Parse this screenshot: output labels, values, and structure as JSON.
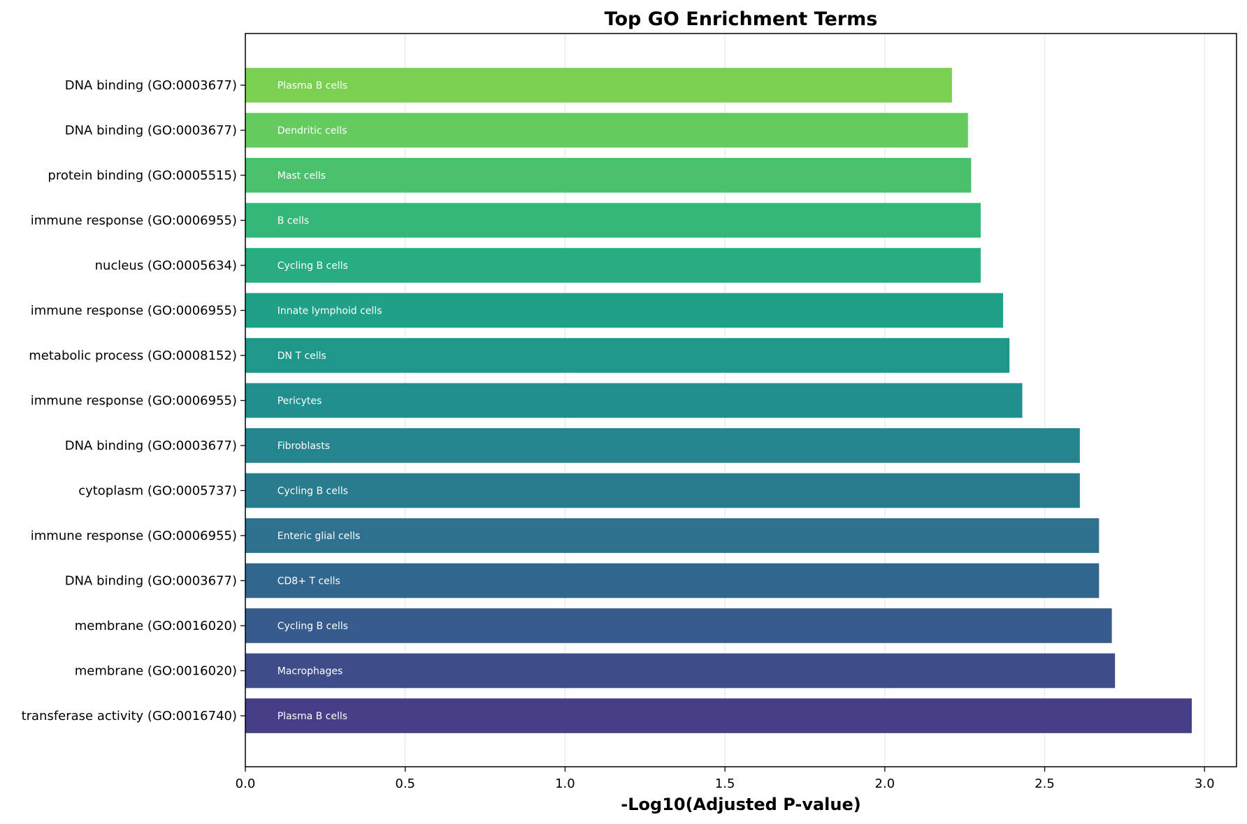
{
  "chart_data": {
    "type": "bar",
    "orientation": "horizontal",
    "title": "Top GO Enrichment Terms",
    "xlabel": "-Log10(Adjusted P-value)",
    "ylabel": "",
    "xlim": [
      0,
      3.1
    ],
    "xticks": [
      "0.0",
      "0.5",
      "1.0",
      "1.5",
      "2.0",
      "2.5",
      "3.0"
    ],
    "xtick_values": [
      0,
      0.5,
      1.0,
      1.5,
      2.0,
      2.5,
      3.0
    ],
    "grid": "x",
    "legend": "none",
    "bars": [
      {
        "term": "DNA binding (GO:0003677)",
        "cell_type": "Plasma B cells",
        "value": 2.21,
        "color": "#7ad151"
      },
      {
        "term": "DNA binding (GO:0003677)",
        "cell_type": "Dendritic cells",
        "value": 2.26,
        "color": "#65cb5e"
      },
      {
        "term": "protein binding (GO:0005515)",
        "cell_type": "Mast cells",
        "value": 2.27,
        "color": "#4ac16d"
      },
      {
        "term": "immune response (GO:0006955)",
        "cell_type": "B cells",
        "value": 2.3,
        "color": "#35b779"
      },
      {
        "term": "nucleus (GO:0005634)",
        "cell_type": "Cycling B cells",
        "value": 2.3,
        "color": "#27ad81"
      },
      {
        "term": "immune response (GO:0006955)",
        "cell_type": "Innate lymphoid cells",
        "value": 2.37,
        "color": "#1fa187"
      },
      {
        "term": "metabolic process (GO:0008152)",
        "cell_type": "DN T cells",
        "value": 2.39,
        "color": "#1f978b"
      },
      {
        "term": "immune response (GO:0006955)",
        "cell_type": "Pericytes",
        "value": 2.43,
        "color": "#218f8d"
      },
      {
        "term": "DNA binding (GO:0003677)",
        "cell_type": "Fibroblasts",
        "value": 2.61,
        "color": "#25858e"
      },
      {
        "term": "cytoplasm (GO:0005737)",
        "cell_type": "Cycling B cells",
        "value": 2.61,
        "color": "#297b8e"
      },
      {
        "term": "immune response (GO:0006955)",
        "cell_type": "Enteric glial cells",
        "value": 2.67,
        "color": "#2d718e"
      },
      {
        "term": "DNA binding (GO:0003677)",
        "cell_type": "CD8+ T cells",
        "value": 2.67,
        "color": "#31668e"
      },
      {
        "term": "membrane (GO:0016020)",
        "cell_type": "Cycling B cells",
        "value": 2.71,
        "color": "#375b8d"
      },
      {
        "term": "membrane (GO:0016020)",
        "cell_type": "Macrophages",
        "value": 2.72,
        "color": "#3e4c8a"
      },
      {
        "term": "transferase activity (GO:0016740)",
        "cell_type": "Plasma B cells",
        "value": 2.96,
        "color": "#443f86"
      }
    ]
  }
}
